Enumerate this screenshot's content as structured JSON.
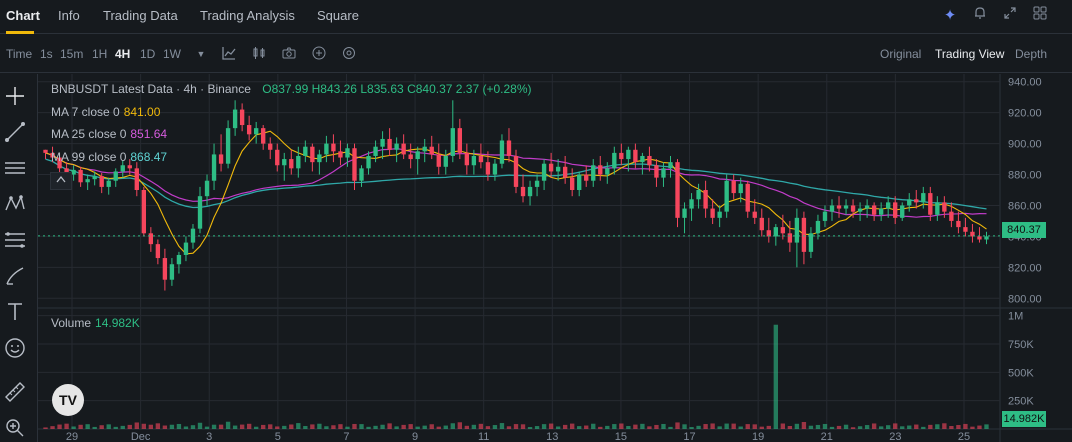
{
  "tabs": [
    "Chart",
    "Info",
    "Trading Data",
    "Trading Analysis",
    "Square"
  ],
  "icons": [
    "sparkle-icon",
    "bell-icon",
    "expand-icon",
    "grid-icon"
  ],
  "toolbar": {
    "time_label": "Time",
    "intervals": [
      "1s",
      "15m",
      "1H",
      "4H",
      "1D",
      "1W"
    ],
    "active_interval": "4H",
    "views": [
      "Original",
      "Trading View",
      "Depth"
    ],
    "active_view": "Trading View"
  },
  "legend": {
    "title": "BNBUSDT Latest Data · 4h · Binance",
    "open_label": "O",
    "open": "837.99",
    "high_label": "H",
    "high": "843.26",
    "low_label": "L",
    "low": "835.63",
    "close_label": "C",
    "close": "840.37",
    "change": "2.37 (+0.28%)",
    "ma7_label": "MA 7 close 0",
    "ma7": "841.00",
    "ma25_label": "MA 25 close 0",
    "ma25": "851.64",
    "ma99_label": "MA 99 close 0",
    "ma99": "868.47",
    "volume_label": "Volume",
    "volume": "14.982K"
  },
  "colors": {
    "up": "#2ebd85",
    "down": "#f6465d",
    "ma7": "#f0b90b",
    "ma25": "#c13cc9",
    "ma99": "#2fa8a8",
    "grid": "#262a31",
    "background": "#161a1e"
  },
  "chart_data": {
    "type": "candlestick",
    "symbol": "BNBUSDT",
    "interval": "4h",
    "price_axis": {
      "ticks": [
        800,
        820,
        840,
        860,
        880,
        900,
        920,
        940
      ],
      "labels": [
        "800.00",
        "820.00",
        "840.00",
        "860.00",
        "880.00",
        "900.00",
        "920.00",
        "940.00"
      ]
    },
    "volume_axis": {
      "ticks": [
        250000,
        500000,
        750000,
        1000000
      ],
      "labels": [
        "250K",
        "500K",
        "750K",
        "1M"
      ]
    },
    "x_labels": [
      "29",
      "Dec",
      "3",
      "5",
      "7",
      "9",
      "11",
      "13",
      "15",
      "17",
      "19",
      "21",
      "23",
      "25"
    ],
    "last_price": "840.37",
    "last_volume": "14.982K",
    "candles": [
      [
        896,
        896,
        890,
        894
      ],
      [
        894,
        898,
        888,
        891
      ],
      [
        891,
        893,
        880,
        884
      ],
      [
        884,
        888,
        878,
        880
      ],
      [
        880,
        886,
        876,
        883
      ],
      [
        883,
        885,
        872,
        875
      ],
      [
        875,
        880,
        870,
        877
      ],
      [
        877,
        882,
        873,
        879
      ],
      [
        879,
        881,
        868,
        872
      ],
      [
        872,
        878,
        867,
        876
      ],
      [
        876,
        884,
        872,
        882
      ],
      [
        882,
        889,
        878,
        886
      ],
      [
        886,
        890,
        880,
        884
      ],
      [
        884,
        888,
        866,
        870
      ],
      [
        870,
        872,
        840,
        842
      ],
      [
        842,
        846,
        830,
        835
      ],
      [
        835,
        838,
        822,
        826
      ],
      [
        826,
        832,
        805,
        812
      ],
      [
        812,
        826,
        808,
        822
      ],
      [
        822,
        830,
        816,
        828
      ],
      [
        828,
        840,
        824,
        836
      ],
      [
        836,
        848,
        832,
        845
      ],
      [
        845,
        872,
        842,
        866
      ],
      [
        866,
        880,
        860,
        876
      ],
      [
        876,
        900,
        870,
        893
      ],
      [
        893,
        906,
        882,
        887
      ],
      [
        887,
        915,
        884,
        910
      ],
      [
        910,
        928,
        905,
        922
      ],
      [
        922,
        926,
        908,
        912
      ],
      [
        912,
        918,
        902,
        906
      ],
      [
        906,
        914,
        900,
        910
      ],
      [
        910,
        912,
        896,
        900
      ],
      [
        900,
        904,
        890,
        896
      ],
      [
        896,
        900,
        882,
        886
      ],
      [
        886,
        894,
        876,
        890
      ],
      [
        890,
        896,
        880,
        884
      ],
      [
        884,
        898,
        878,
        892
      ],
      [
        892,
        902,
        888,
        898
      ],
      [
        898,
        900,
        882,
        888
      ],
      [
        888,
        896,
        880,
        893
      ],
      [
        893,
        905,
        888,
        900
      ],
      [
        900,
        906,
        888,
        895
      ],
      [
        895,
        902,
        886,
        891
      ],
      [
        891,
        900,
        885,
        897
      ],
      [
        897,
        900,
        870,
        876
      ],
      [
        876,
        886,
        872,
        884
      ],
      [
        884,
        895,
        880,
        892
      ],
      [
        892,
        902,
        888,
        898
      ],
      [
        898,
        908,
        890,
        903
      ],
      [
        903,
        910,
        892,
        896
      ],
      [
        896,
        904,
        888,
        900
      ],
      [
        900,
        906,
        890,
        893
      ],
      [
        893,
        900,
        884,
        890
      ],
      [
        890,
        898,
        880,
        895
      ],
      [
        895,
        903,
        888,
        898
      ],
      [
        898,
        905,
        890,
        893
      ],
      [
        893,
        900,
        880,
        885
      ],
      [
        885,
        896,
        880,
        892
      ],
      [
        892,
        928,
        888,
        910
      ],
      [
        910,
        916,
        890,
        894
      ],
      [
        894,
        900,
        880,
        886
      ],
      [
        886,
        896,
        880,
        892
      ],
      [
        892,
        900,
        884,
        888
      ],
      [
        888,
        895,
        876,
        880
      ],
      [
        880,
        890,
        876,
        887
      ],
      [
        887,
        906,
        884,
        902
      ],
      [
        902,
        910,
        888,
        892
      ],
      [
        892,
        896,
        868,
        872
      ],
      [
        872,
        880,
        862,
        866
      ],
      [
        866,
        876,
        860,
        872
      ],
      [
        872,
        880,
        866,
        876
      ],
      [
        876,
        890,
        870,
        887
      ],
      [
        887,
        894,
        878,
        882
      ],
      [
        882,
        890,
        876,
        885
      ],
      [
        885,
        892,
        874,
        878
      ],
      [
        878,
        884,
        866,
        870
      ],
      [
        870,
        882,
        866,
        880
      ],
      [
        880,
        886,
        872,
        876
      ],
      [
        876,
        890,
        872,
        886
      ],
      [
        886,
        892,
        876,
        880
      ],
      [
        880,
        888,
        874,
        884
      ],
      [
        884,
        898,
        880,
        894
      ],
      [
        894,
        900,
        886,
        890
      ],
      [
        890,
        898,
        882,
        896
      ],
      [
        896,
        900,
        884,
        888
      ],
      [
        888,
        894,
        880,
        892
      ],
      [
        892,
        898,
        882,
        886
      ],
      [
        886,
        890,
        872,
        878
      ],
      [
        878,
        888,
        872,
        884
      ],
      [
        884,
        892,
        878,
        888
      ],
      [
        888,
        890,
        846,
        852
      ],
      [
        852,
        862,
        842,
        858
      ],
      [
        858,
        868,
        850,
        864
      ],
      [
        864,
        874,
        858,
        870
      ],
      [
        870,
        876,
        852,
        858
      ],
      [
        858,
        864,
        848,
        852
      ],
      [
        852,
        860,
        846,
        856
      ],
      [
        856,
        880,
        852,
        876
      ],
      [
        876,
        880,
        864,
        868
      ],
      [
        868,
        878,
        862,
        874
      ],
      [
        874,
        876,
        852,
        856
      ],
      [
        856,
        864,
        848,
        852
      ],
      [
        852,
        858,
        840,
        844
      ],
      [
        844,
        852,
        836,
        840
      ],
      [
        840,
        848,
        834,
        846
      ],
      [
        846,
        854,
        838,
        842
      ],
      [
        842,
        850,
        830,
        836
      ],
      [
        836,
        858,
        820,
        852
      ],
      [
        852,
        856,
        822,
        830
      ],
      [
        830,
        846,
        826,
        842
      ],
      [
        842,
        854,
        838,
        850
      ],
      [
        850,
        860,
        846,
        856
      ],
      [
        856,
        864,
        850,
        860
      ],
      [
        860,
        866,
        852,
        858
      ],
      [
        858,
        864,
        854,
        860
      ],
      [
        860,
        864,
        852,
        856
      ],
      [
        856,
        862,
        850,
        858
      ],
      [
        858,
        864,
        852,
        860
      ],
      [
        860,
        862,
        850,
        854
      ],
      [
        854,
        862,
        850,
        858
      ],
      [
        858,
        866,
        852,
        862
      ],
      [
        862,
        866,
        848,
        852
      ],
      [
        852,
        862,
        850,
        860
      ],
      [
        860,
        868,
        856,
        864
      ],
      [
        864,
        870,
        858,
        862
      ],
      [
        862,
        872,
        858,
        868
      ],
      [
        868,
        872,
        850,
        854
      ],
      [
        854,
        866,
        850,
        862
      ],
      [
        862,
        866,
        852,
        856
      ],
      [
        856,
        862,
        846,
        850
      ],
      [
        850,
        856,
        842,
        846
      ],
      [
        846,
        852,
        840,
        843
      ],
      [
        843,
        848,
        836,
        840
      ],
      [
        840,
        846,
        836,
        838
      ],
      [
        838,
        843,
        835,
        840
      ]
    ],
    "volume_spike_index": 104,
    "volume_spike": 920000
  }
}
